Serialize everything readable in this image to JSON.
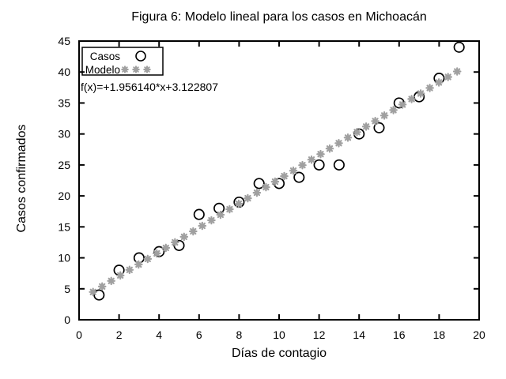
{
  "chart_data": {
    "type": "scatter",
    "title": "Figura 6: Modelo lineal para los casos en Michoacán",
    "xlabel": "Días de contagio",
    "ylabel": "Casos confirmados",
    "annotation": "f(x)=+1.956140*x+3.122807",
    "xlim": [
      0,
      20
    ],
    "ylim": [
      0,
      45
    ],
    "x_ticks": [
      0,
      2,
      4,
      6,
      8,
      10,
      12,
      14,
      16,
      18,
      20
    ],
    "y_ticks": [
      0,
      5,
      10,
      15,
      20,
      25,
      30,
      35,
      40,
      45
    ],
    "grid": false,
    "legend_position": "top-left",
    "colors": {
      "frame": "#000000",
      "background": "#ffffff"
    },
    "series": [
      {
        "name": "Casos",
        "marker": "circle",
        "color": "#000000",
        "x": [
          1,
          2,
          3,
          4,
          5,
          6,
          7,
          8,
          9,
          10,
          11,
          12,
          13,
          14,
          15,
          16,
          17,
          18,
          19
        ],
        "y": [
          4,
          8,
          10,
          11,
          12,
          17,
          18,
          19,
          22,
          22,
          23,
          25,
          25,
          30,
          31,
          35,
          36,
          39,
          44
        ]
      },
      {
        "name": "Modelo",
        "marker": "asterisk",
        "color": "#a0a0a0",
        "fit": {
          "slope": 1.95614,
          "intercept": 3.122807,
          "x_start": 0.7,
          "x_end": 18.9,
          "n_points": 41
        }
      }
    ]
  }
}
